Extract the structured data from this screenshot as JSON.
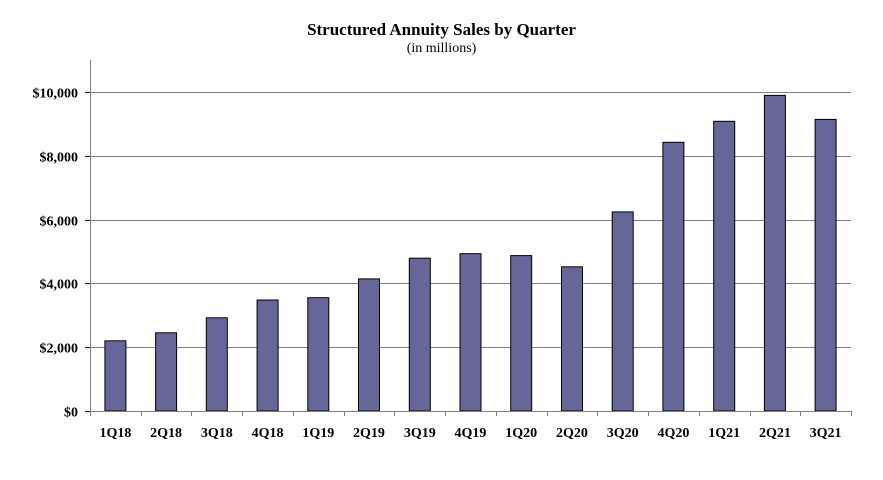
{
  "chart_data": {
    "type": "bar",
    "title": "Structured Annuity Sales by Quarter",
    "subtitle": "(in millions)",
    "xlabel": "",
    "ylabel": "",
    "categories": [
      "1Q18",
      "2Q18",
      "3Q18",
      "4Q18",
      "1Q19",
      "2Q19",
      "3Q19",
      "4Q19",
      "1Q20",
      "2Q20",
      "3Q20",
      "4Q20",
      "1Q21",
      "2Q21",
      "3Q21"
    ],
    "values": [
      2200,
      2450,
      2920,
      3480,
      3550,
      4140,
      4790,
      4930,
      4870,
      4520,
      6240,
      8420,
      9080,
      9890,
      9140
    ],
    "ylim": [
      0,
      11000
    ],
    "yticks": [
      0,
      2000,
      4000,
      6000,
      8000,
      10000
    ],
    "ytick_labels": [
      "$0",
      "$2,000",
      "$4,000",
      "$6,000",
      "$8,000",
      "$10,000"
    ],
    "grid": true,
    "bar_color": "#666699",
    "bar_edge_color": "#000000",
    "grid_color": "#808080"
  }
}
